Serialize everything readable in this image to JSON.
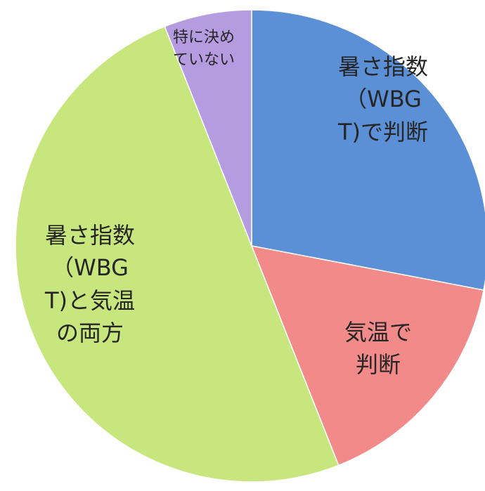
{
  "chart_data": {
    "type": "pie",
    "categories": [
      "暑さ指数（WBGT)で判断",
      "気温で判断",
      "暑さ指数（WBGT)と気温の両方",
      "特に決めていない"
    ],
    "values": [
      28,
      16,
      50,
      6
    ],
    "colors": [
      "#5b8fd6",
      "#f28a8a",
      "#c8e67e",
      "#b59ce0"
    ]
  }
}
